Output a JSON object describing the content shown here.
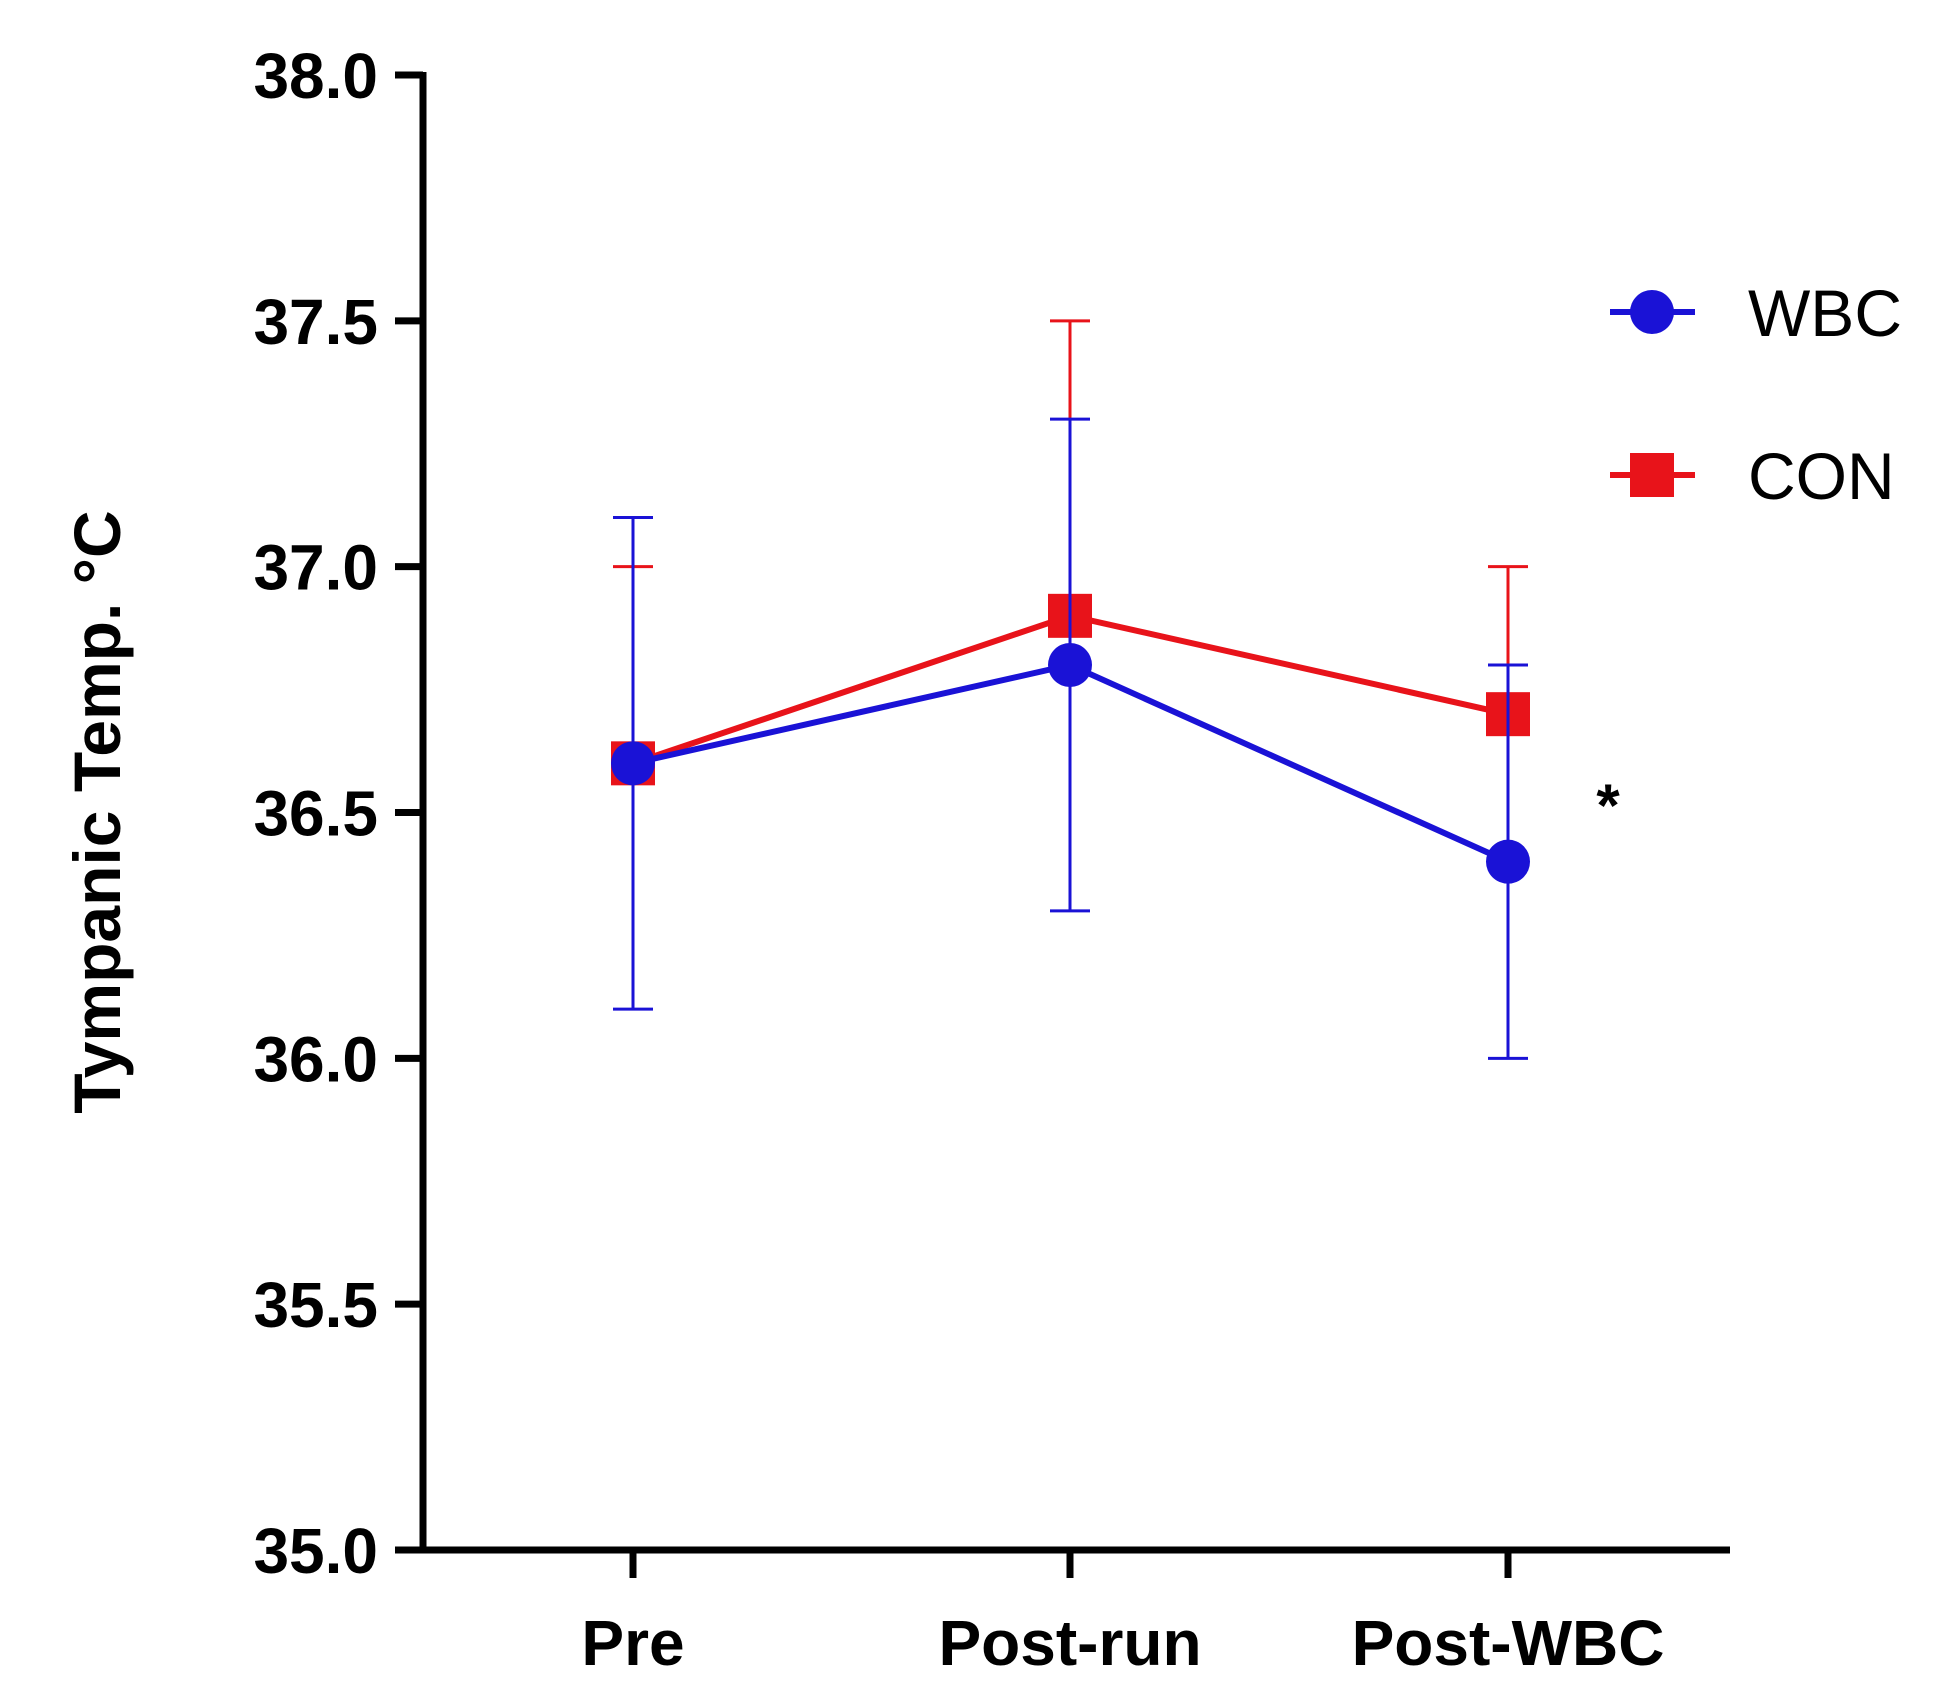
{
  "chart_data": {
    "type": "line",
    "title": "",
    "xlabel": "",
    "ylabel": "Tympanic Temp. °C",
    "categories": [
      "Pre",
      "Post-run",
      "Post-WBC"
    ],
    "ylim": [
      35.0,
      38.0
    ],
    "yticks": [
      "35.0",
      "35.5",
      "36.0",
      "36.5",
      "37.0",
      "37.5",
      "38.0"
    ],
    "grid": false,
    "legend_position": "right",
    "series": [
      {
        "name": "CON",
        "color": "#e8131a",
        "marker": "square",
        "values": [
          36.6,
          36.9,
          36.7
        ],
        "error_upper": [
          37.0,
          37.5,
          37.0
        ],
        "error_lower": [
          36.6,
          36.9,
          36.7
        ]
      },
      {
        "name": "WBC",
        "color": "#1a12d6",
        "marker": "circle",
        "values": [
          36.6,
          36.8,
          36.4
        ],
        "error_upper": [
          37.1,
          37.3,
          36.8
        ],
        "error_lower": [
          36.1,
          36.3,
          36.0
        ]
      }
    ],
    "legend_order": [
      "WBC",
      "CON"
    ],
    "annotations": [
      {
        "text": "*",
        "x": "Post-WBC",
        "y": 36.55
      }
    ]
  }
}
